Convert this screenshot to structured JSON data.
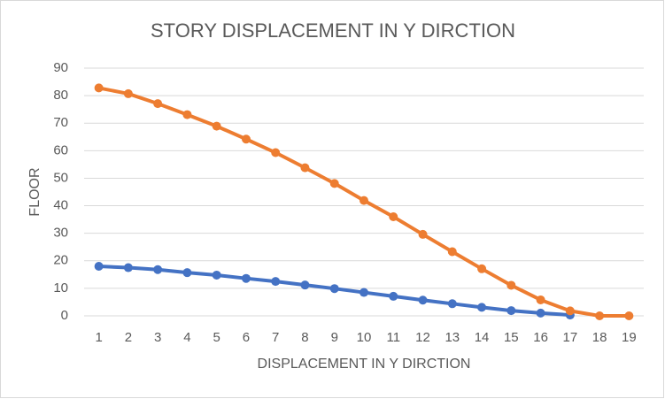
{
  "chart_data": {
    "type": "line",
    "title": "STORY DISPLACEMENT IN Y DIRCTION",
    "x_label": "DISPLACEMENT IN Y DIRCTION",
    "y_label": "FLOOR",
    "categories": [
      1,
      2,
      3,
      4,
      5,
      6,
      7,
      8,
      9,
      10,
      11,
      12,
      13,
      14,
      15,
      16,
      17,
      18,
      19
    ],
    "series": [
      {
        "color": "#4472c4",
        "values": [
          18,
          17.5,
          16.8,
          15.7,
          14.8,
          13.6,
          12.5,
          11.2,
          9.9,
          8.5,
          7.1,
          5.7,
          4.4,
          3.1,
          1.9,
          1.0,
          0.3,
          null,
          null
        ]
      },
      {
        "color": "#ed7d31",
        "values": [
          82.8,
          80.7,
          77.1,
          73.1,
          68.9,
          64.2,
          59.3,
          53.8,
          48.1,
          41.9,
          36.0,
          29.6,
          23.3,
          17.1,
          11.1,
          5.8,
          1.8,
          0,
          0
        ]
      }
    ],
    "ylim": [
      0,
      90
    ],
    "yticks": [
      0,
      10,
      20,
      30,
      40,
      50,
      60,
      70,
      80,
      90
    ],
    "grid": true
  }
}
